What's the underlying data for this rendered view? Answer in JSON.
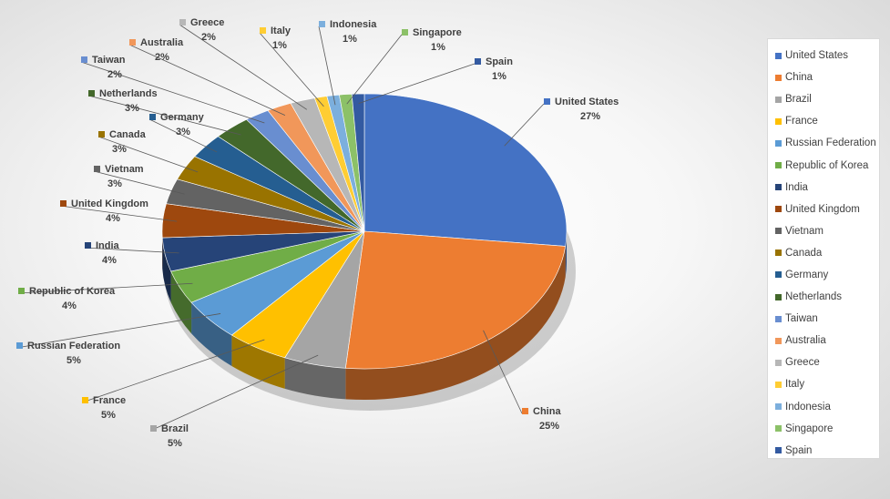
{
  "chart_data": {
    "type": "pie",
    "title": "",
    "legend_position": "right",
    "slices": [
      {
        "name": "United States",
        "value": 27,
        "label": "27%",
        "color": "#4472C4"
      },
      {
        "name": "China",
        "value": 25,
        "label": "25%",
        "color": "#ED7D31"
      },
      {
        "name": "Brazil",
        "value": 5,
        "label": "5%",
        "color": "#A5A5A5"
      },
      {
        "name": "France",
        "value": 5,
        "label": "5%",
        "color": "#FFC000"
      },
      {
        "name": "Russian Federation",
        "value": 5,
        "label": "5%",
        "color": "#5B9BD5"
      },
      {
        "name": "Republic of Korea",
        "value": 4,
        "label": "4%",
        "color": "#70AD47"
      },
      {
        "name": "India",
        "value": 4,
        "label": "4%",
        "color": "#264478"
      },
      {
        "name": "United Kingdom",
        "value": 4,
        "label": "4%",
        "color": "#9E480E"
      },
      {
        "name": "Vietnam",
        "value": 3,
        "label": "3%",
        "color": "#636363"
      },
      {
        "name": "Canada",
        "value": 3,
        "label": "3%",
        "color": "#997300"
      },
      {
        "name": "Germany",
        "value": 3,
        "label": "3%",
        "color": "#255E91"
      },
      {
        "name": "Netherlands",
        "value": 3,
        "label": "3%",
        "color": "#43682B"
      },
      {
        "name": "Taiwan",
        "value": 2,
        "label": "2%",
        "color": "#698ED0"
      },
      {
        "name": "Australia",
        "value": 2,
        "label": "2%",
        "color": "#F1975A"
      },
      {
        "name": "Greece",
        "value": 2,
        "label": "2%",
        "color": "#B7B7B7"
      },
      {
        "name": "Italy",
        "value": 1,
        "label": "1%",
        "color": "#FFCD33"
      },
      {
        "name": "Indonesia",
        "value": 1,
        "label": "1%",
        "color": "#7CAFDD"
      },
      {
        "name": "Singapore",
        "value": 1,
        "label": "1%",
        "color": "#8CC168"
      },
      {
        "name": "Spain",
        "value": 1,
        "label": "1%",
        "color": "#335AA1"
      }
    ]
  }
}
